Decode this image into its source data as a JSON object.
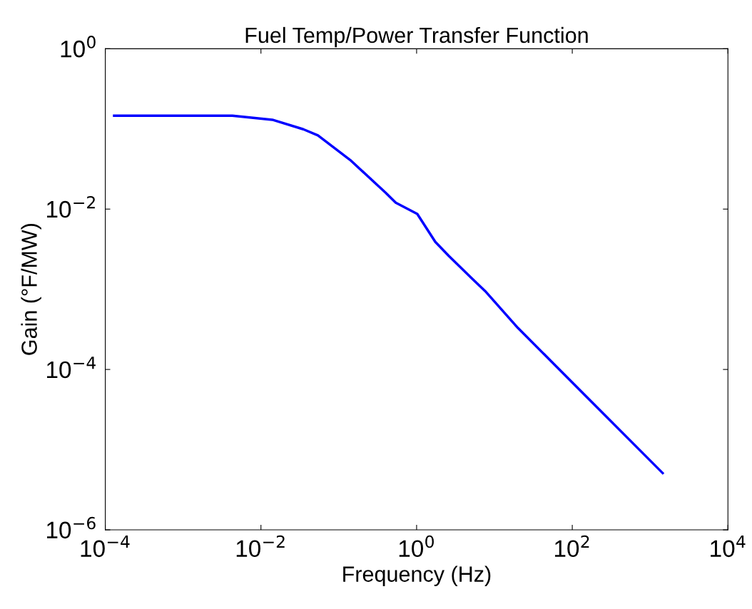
{
  "chart_data": {
    "type": "line",
    "title": "Fuel Temp/Power Transfer Function",
    "xlabel": "Frequency (Hz)",
    "ylabel": "Gain (°F/MW)",
    "log": "xy",
    "grid": false,
    "marker": "none",
    "line_style": "solid",
    "xlim": [
      0.0001,
      10000
    ],
    "ylim": [
      1e-06,
      1
    ],
    "xticks": [
      {
        "value": 0.0001,
        "label": "10$^{−4}$"
      },
      {
        "value": 0.01,
        "label": "10$^{−2}$"
      },
      {
        "value": 1,
        "label": "10$^{0}$"
      },
      {
        "value": 100,
        "label": "10$^{2}$"
      },
      {
        "value": 10000,
        "label": "10$^{4}$"
      }
    ],
    "yticks": [
      {
        "value": 1e-06,
        "label": "10$^{−6}$"
      },
      {
        "value": 0.0001,
        "label": "10$^{−4}$"
      },
      {
        "value": 0.01,
        "label": "10$^{−2}$"
      },
      {
        "value": 1,
        "label": "10$^{0}$"
      }
    ],
    "x": [
      0.00013,
      0.0043,
      0.014,
      0.035,
      0.054,
      0.14,
      0.4,
      0.54,
      1.02,
      1.74,
      2.6,
      5.0,
      7.6,
      20,
      148,
      1450
    ],
    "series": [
      {
        "color": "#0000ff",
        "values": [
          0.146,
          0.146,
          0.13,
          0.099,
          0.083,
          0.041,
          0.016,
          0.012,
          0.0087,
          0.0039,
          0.0026,
          0.0014,
          0.00095,
          0.00033,
          4.7e-05,
          5.1e-06
        ]
      }
    ]
  }
}
